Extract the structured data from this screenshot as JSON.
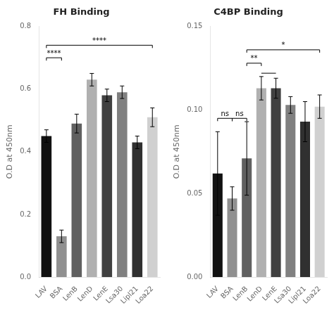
{
  "chart_data": [
    {
      "type": "bar",
      "title": "FH Binding",
      "categories": [
        "LAV",
        "BSA",
        "LenB",
        "LenD",
        "LenE",
        "Lsa30",
        "Lipl21",
        "Loa22"
      ],
      "values": [
        0.45,
        0.13,
        0.49,
        0.63,
        0.58,
        0.59,
        0.43,
        0.51
      ],
      "errors": [
        0.02,
        0.02,
        0.03,
        0.02,
        0.02,
        0.02,
        0.02,
        0.03
      ],
      "colors": [
        "#111111",
        "#909090",
        "#606060",
        "#b0b0b0",
        "#404040",
        "#808080",
        "#303030",
        "#d0d0d0"
      ],
      "y_label": "O.D at 450nm",
      "ylim": [
        0.0,
        0.8
      ],
      "yticks": [
        {
          "value": 0.0,
          "label": "0.0"
        },
        0.2,
        0.4,
        0.6,
        0.8
      ],
      "grid": false,
      "annotations": [
        {
          "text": "****",
          "from": "LAV",
          "to": "BSA",
          "y": 0.7
        },
        {
          "text": "****",
          "from": "LAV",
          "to": "Loa22",
          "y": 0.74
        }
      ]
    },
    {
      "type": "bar",
      "title": "C4BP Binding",
      "categories": [
        "LAV",
        "BSA",
        "LenB",
        "LenD",
        "LenE",
        "Lsa30",
        "Lipl21",
        "Loa22"
      ],
      "values": [
        0.062,
        0.047,
        0.071,
        0.113,
        0.113,
        0.103,
        0.093,
        0.102
      ],
      "errors": [
        0.025,
        0.007,
        0.022,
        0.007,
        0.006,
        0.005,
        0.012,
        0.007
      ],
      "colors": [
        "#111111",
        "#909090",
        "#606060",
        "#b0b0b0",
        "#404040",
        "#808080",
        "#303030",
        "#d0d0d0"
      ],
      "y_label": "O.D at 450nm",
      "ylim": [
        0.0,
        0.15
      ],
      "yticks": [
        {
          "value": 0.0,
          "label": "0.00"
        },
        0.05,
        {
          "value": 0.1,
          "label": "0.10"
        },
        0.15
      ],
      "grid": false,
      "annotations": [
        {
          "text": "ns",
          "from": "LAV",
          "to": "BSA",
          "y": 0.095
        },
        {
          "text": "ns",
          "from": "BSA",
          "to": "LenB",
          "y": 0.095
        },
        {
          "text": "**",
          "from": "LenB",
          "to": "LenD",
          "y": 0.128
        },
        {
          "text": "*",
          "from": "LenB",
          "to": "Loa22",
          "y": 0.136
        },
        {
          "from": "LenD",
          "to": "LenE",
          "y": 0.122
        }
      ]
    }
  ]
}
